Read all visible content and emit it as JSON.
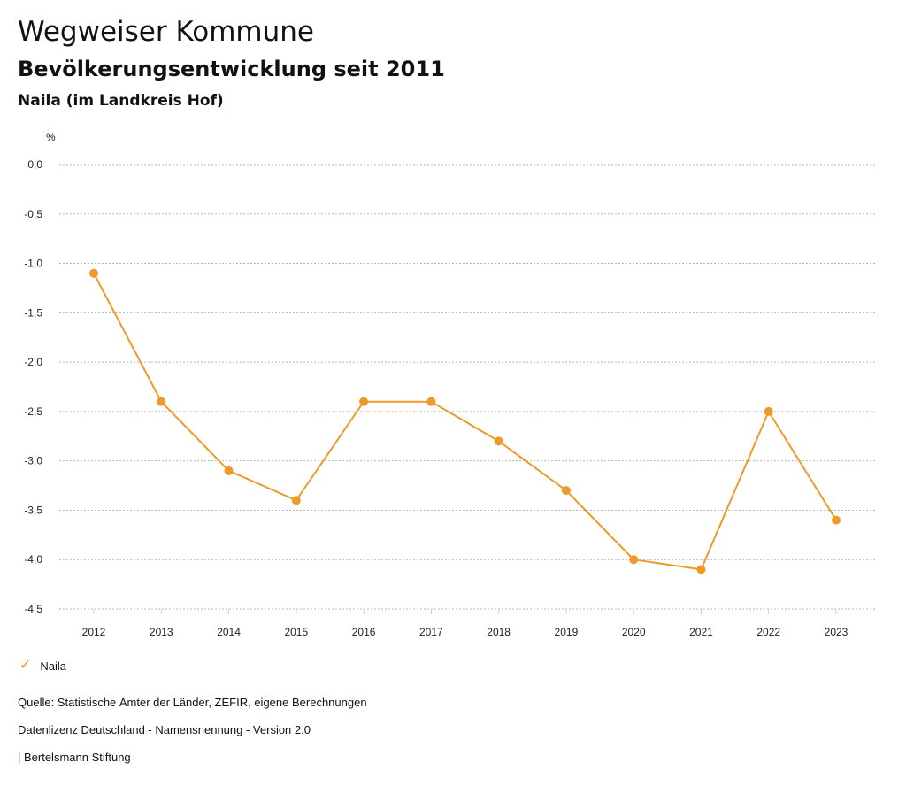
{
  "header": {
    "title": "Wegweiser Kommune",
    "subtitle": "Bevölkerungsentwicklung seit 2011",
    "region": "Naila (im Landkreis Hof)"
  },
  "legend": {
    "label": "Naila",
    "icon": "check-icon"
  },
  "footer": {
    "source": "Quelle: Statistische Ämter der Länder, ZEFIR, eigene Berechnungen",
    "license": "Datenlizenz Deutschland - Namensnennung - Version 2.0",
    "publisher": "| Bertelsmann Stiftung"
  },
  "colors": {
    "series": "#ed9a2b",
    "grid": "#b5b5b5"
  },
  "chart_data": {
    "type": "line",
    "title": "Bevölkerungsentwicklung seit 2011",
    "ylabel": "%",
    "xlabel": "",
    "categories": [
      "2012",
      "2013",
      "2014",
      "2015",
      "2016",
      "2017",
      "2018",
      "2019",
      "2020",
      "2021",
      "2022",
      "2023"
    ],
    "series": [
      {
        "name": "Naila",
        "values": [
          -1.1,
          -2.4,
          -3.1,
          -3.4,
          -2.4,
          -2.4,
          -2.8,
          -3.3,
          -4.0,
          -4.1,
          -2.5,
          -3.6
        ]
      }
    ],
    "ylim": [
      -4.5,
      0
    ],
    "yticks": [
      "0,0",
      "-0,5",
      "-1,0",
      "-1,5",
      "-2,0",
      "-2,5",
      "-3,0",
      "-3,5",
      "-4,0",
      "-4,5"
    ],
    "ytick_values": [
      0,
      -0.5,
      -1,
      -1.5,
      -2,
      -2.5,
      -3,
      -3.5,
      -4,
      -4.5
    ],
    "grid": true,
    "legend_position": "bottom-left"
  }
}
